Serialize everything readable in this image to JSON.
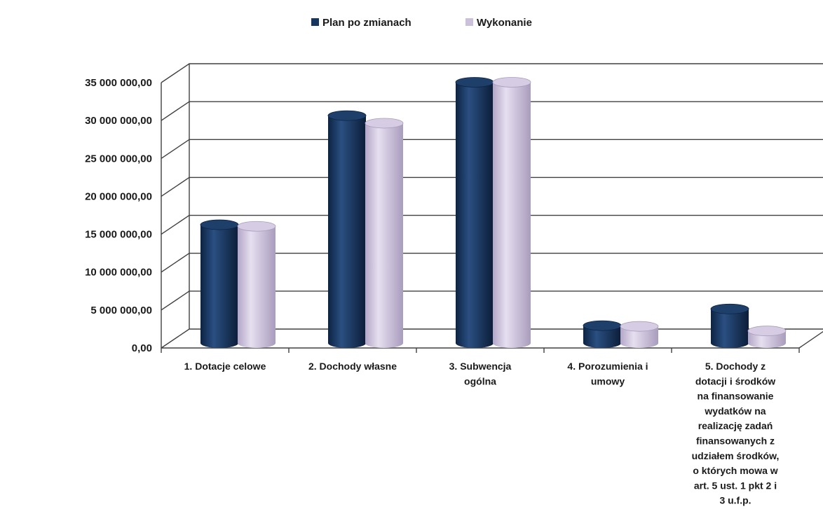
{
  "chart_data": {
    "type": "bar",
    "title": "",
    "categories": [
      [
        "1. Dotacje celowe"
      ],
      [
        "2. Dochody własne"
      ],
      [
        "3. Subwencja",
        "ogólna"
      ],
      [
        "4. Porozumienia i",
        "umowy"
      ],
      [
        "5. Dochody z",
        "dotacji i środków",
        "na finansowanie",
        "wydatków na",
        "realizację zadań",
        "finansowanych z",
        "udziałem środków,",
        "o których mowa w",
        "art. 5 ust. 1 pkt  2 i",
        "3 u.f.p."
      ]
    ],
    "series": [
      {
        "name": "Plan po zmianach",
        "color": "#17365d",
        "values": [
          15600000,
          30000000,
          34400000,
          2300000,
          4500000
        ]
      },
      {
        "name": "Wykonanie",
        "color": "#ccc1da",
        "values": [
          15400000,
          29000000,
          34400000,
          2200000,
          1600000
        ]
      }
    ],
    "ylim": [
      0,
      35000000
    ],
    "ytick_values": [
      0,
      5000000,
      10000000,
      15000000,
      20000000,
      25000000,
      30000000,
      35000000
    ],
    "ytick_labels": [
      "0,00",
      "5 000 000,00",
      "10 000 000,00",
      "15 000 000,00",
      "20 000 000,00",
      "25 000 000,00",
      "30 000 000,00",
      "35 000 000,00"
    ],
    "grid": true,
    "legend_position": "top",
    "style": "3d-cylinder"
  }
}
